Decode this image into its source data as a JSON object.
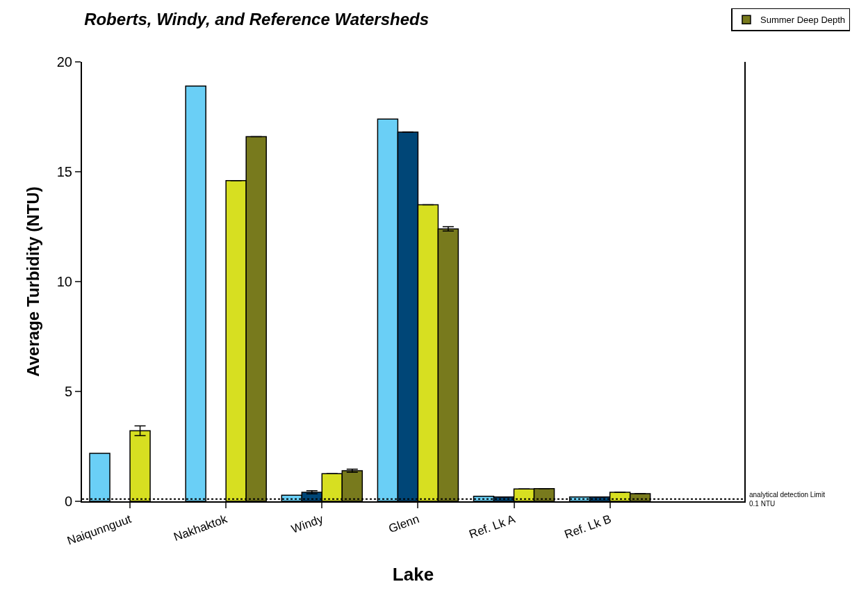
{
  "chart_data": {
    "type": "bar",
    "title": "Roberts, Windy, and Reference Watersheds",
    "xlabel": "Lake",
    "ylabel": "Average Turbidity (NTU)",
    "categories": [
      "Naiqunnguut",
      "Nakhaktok",
      "Windy",
      "Glenn",
      "Ref. Lk A",
      "Ref. Lk B"
    ],
    "series": [
      {
        "color": "#6acff6",
        "values": [
          2.18,
          18.9,
          0.28,
          17.4,
          0.23,
          0.2
        ]
      },
      {
        "color": "#004677",
        "values": [
          null,
          null,
          0.41,
          16.8,
          0.2,
          0.2
        ],
        "errors": [
          null,
          null,
          0.07,
          null,
          null,
          null
        ]
      },
      {
        "color": "#d7df21",
        "values": [
          3.21,
          14.6,
          1.26,
          13.5,
          0.56,
          0.41
        ],
        "errors": [
          0.22,
          null,
          null,
          null,
          null,
          null
        ]
      },
      {
        "name": "Summer Deep Depth",
        "color": "#787a1d",
        "values": [
          null,
          16.6,
          1.39,
          12.4,
          0.58,
          0.35
        ],
        "errors": [
          null,
          null,
          0.07,
          0.1,
          null,
          null
        ]
      }
    ],
    "ylim": [
      0,
      20
    ],
    "yticks": [
      0,
      5,
      10,
      15,
      20
    ],
    "grid": false,
    "legend": "top right",
    "ref_lines": [
      {
        "axis": "y",
        "value": 0.1,
        "label": "analytical detection Limit\n0.1 NTU",
        "line_style": "dotted"
      }
    ]
  }
}
